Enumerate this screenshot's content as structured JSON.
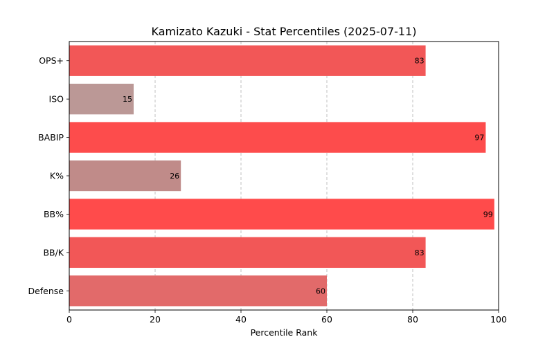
{
  "chart_data": {
    "type": "bar",
    "orientation": "horizontal",
    "title": "Kamizato Kazuki - Stat Percentiles (2025-07-11)",
    "xlabel": "Percentile Rank",
    "ylabel": "",
    "xlim": [
      0,
      100
    ],
    "xticks": [
      0,
      20,
      40,
      60,
      80,
      100
    ],
    "grid": "x-axis dashed",
    "categories": [
      "OPS+",
      "ISO",
      "BABIP",
      "K%",
      "BB%",
      "BB/K",
      "Defense"
    ],
    "values": [
      83,
      15,
      97,
      26,
      99,
      83,
      60
    ],
    "colors": [
      "#f25757",
      "#bb9896",
      "#fd4c4c",
      "#c08b89",
      "#ff4b4b",
      "#f25757",
      "#e26a6a"
    ],
    "data_labels": [
      "83",
      "15",
      "97",
      "26",
      "99",
      "83",
      "60"
    ]
  }
}
